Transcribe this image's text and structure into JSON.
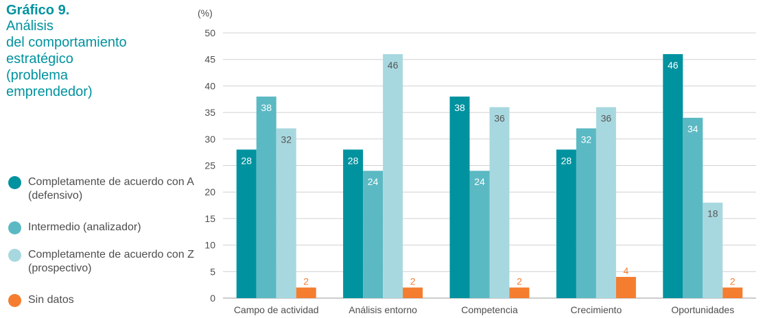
{
  "heading": {
    "label": "Gráfico 9.",
    "title": "Análisis\ndel comportamiento\nestratégico\n(problema\nemprendedor)"
  },
  "chart_data": {
    "type": "bar",
    "ylabel": "(%)",
    "ylim": [
      0,
      50
    ],
    "yticks": [
      0,
      5,
      10,
      15,
      20,
      25,
      30,
      35,
      40,
      45,
      50
    ],
    "grid": true,
    "legend_position": "left",
    "categories": [
      "Campo de actividad",
      "Análisis entorno",
      "Competencia",
      "Crecimiento",
      "Oportunidades"
    ],
    "series": [
      {
        "name": "Completamente de acuerdo con A (defensivo)",
        "color": "#00929f",
        "label_color": "#ffffff",
        "values": [
          28,
          28,
          38,
          28,
          46
        ]
      },
      {
        "name": "Intermedio (analizador)",
        "color": "#5bb9c3",
        "label_color": "#ffffff",
        "values": [
          38,
          24,
          24,
          32,
          34
        ]
      },
      {
        "name": "Completamente de acuerdo con Z (prospectivo)",
        "color": "#a8d8df",
        "label_color": "#555555",
        "values": [
          32,
          46,
          36,
          36,
          18
        ]
      },
      {
        "name": "Sin datos",
        "color": "#f47d2f",
        "label_color": "#f47d2f",
        "values": [
          2,
          2,
          2,
          4,
          2
        ]
      }
    ]
  }
}
